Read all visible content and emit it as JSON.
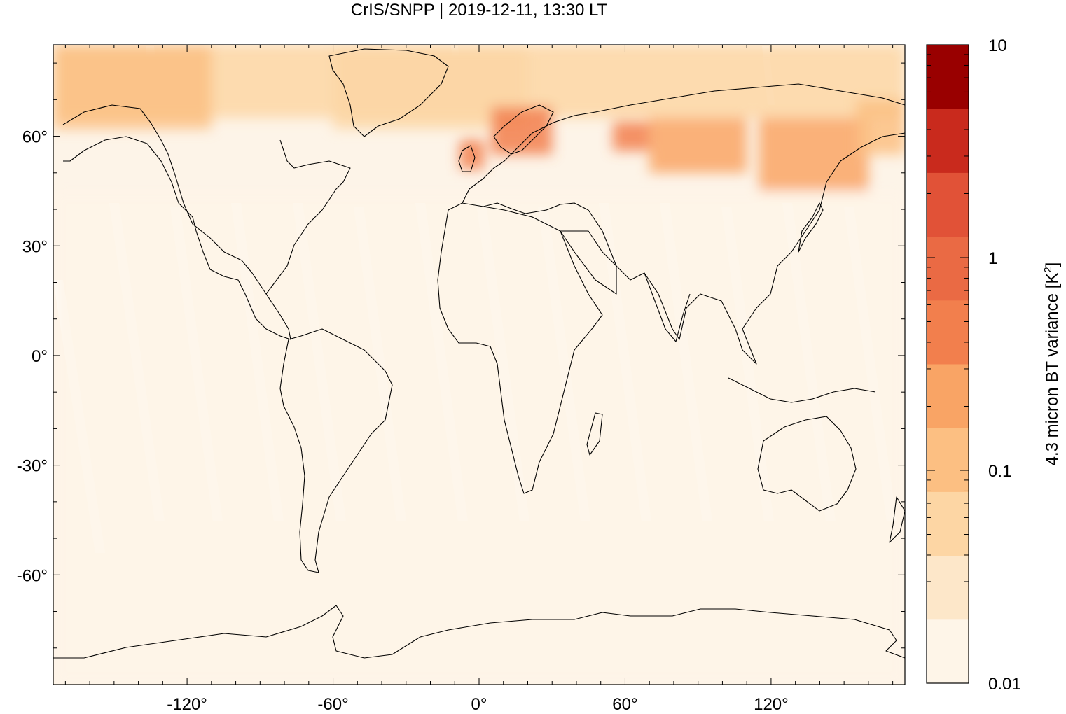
{
  "title": "CrIS/SNPP | 2019-12-11, 13:30 LT",
  "map": {
    "projection": "equirectangular",
    "lon_range": [
      -175,
      175
    ],
    "lat_range": [
      -90,
      85
    ],
    "x_ticks": [
      {
        "value": -120,
        "label": "-120°"
      },
      {
        "value": -60,
        "label": "-60°"
      },
      {
        "value": 0,
        "label": "0°"
      },
      {
        "value": 60,
        "label": "60°"
      },
      {
        "value": 120,
        "label": "120°"
      }
    ],
    "y_ticks": [
      {
        "value": 60,
        "label": "60°"
      },
      {
        "value": 30,
        "label": "30°"
      },
      {
        "value": 0,
        "label": "0°"
      },
      {
        "value": -30,
        "label": "-30°"
      },
      {
        "value": -60,
        "label": "-60°"
      }
    ],
    "background_color": "#fdf4e8",
    "coastline_color": "#000000",
    "swath_gap_color": "#ffffff"
  },
  "colorbar": {
    "label": "4.3 micron BT variance [K",
    "label_superscript": "2",
    "label_close": "]",
    "scale": "log",
    "range": [
      0.01,
      10
    ],
    "tick_labels": [
      {
        "value": 10,
        "label": "10"
      },
      {
        "value": 1,
        "label": "1"
      },
      {
        "value": 0.1,
        "label": "0.1"
      },
      {
        "value": 0.01,
        "label": "0.01"
      }
    ],
    "levels": [
      {
        "from": 0.01,
        "to": 0.02,
        "color": "#fef5e8"
      },
      {
        "from": 0.02,
        "to": 0.04,
        "color": "#fde7c9"
      },
      {
        "from": 0.04,
        "to": 0.08,
        "color": "#fdd6a4"
      },
      {
        "from": 0.08,
        "to": 0.15,
        "color": "#fcbf82"
      },
      {
        "from": 0.15,
        "to": 0.3,
        "color": "#f9a465"
      },
      {
        "from": 0.3,
        "to": 0.6,
        "color": "#f27f4d"
      },
      {
        "from": 0.6,
        "to": 1.2,
        "color": "#ea6a44"
      },
      {
        "from": 1.2,
        "to": 2.5,
        "color": "#e15237"
      },
      {
        "from": 2.5,
        "to": 5,
        "color": "#c92a1d"
      },
      {
        "from": 5,
        "to": 10,
        "color": "#990000"
      }
    ]
  },
  "chart_data": {
    "type": "heatmap",
    "title": "CrIS/SNPP | 2019-12-11, 13:30 LT",
    "xlabel": "",
    "ylabel": "",
    "xlim": [
      -175,
      175
    ],
    "ylim": [
      -90,
      85
    ],
    "color_scale": "log",
    "color_range": [
      0.01,
      10
    ],
    "regions": [
      {
        "name": "tropics_midlatitudes",
        "lon": [
          -175,
          175
        ],
        "lat": [
          -90,
          45
        ],
        "value": 0.015
      },
      {
        "name": "arctic_band",
        "lon": [
          -175,
          175
        ],
        "lat": [
          65,
          85
        ],
        "value": 0.06
      },
      {
        "name": "north_america_high_lat",
        "lon": [
          -175,
          -110
        ],
        "lat": [
          62,
          85
        ],
        "value": 0.1
      },
      {
        "name": "greenland_sea",
        "lon": [
          -60,
          20
        ],
        "lat": [
          62,
          85
        ],
        "value": 0.05
      },
      {
        "name": "british_isles",
        "lon": [
          -8,
          2
        ],
        "lat": [
          51,
          59
        ],
        "value": 0.4
      },
      {
        "name": "scandinavia",
        "lon": [
          5,
          30
        ],
        "lat": [
          55,
          68
        ],
        "value": 0.3
      },
      {
        "name": "west_siberia",
        "lon": [
          55,
          70
        ],
        "lat": [
          56,
          64
        ],
        "value": 0.5
      },
      {
        "name": "central_siberia",
        "lon": [
          70,
          110
        ],
        "lat": [
          50,
          65
        ],
        "value": 0.25
      },
      {
        "name": "east_asia_north",
        "lon": [
          115,
          160
        ],
        "lat": [
          45,
          65
        ],
        "value": 0.15
      },
      {
        "name": "kamchatka",
        "lon": [
          155,
          175
        ],
        "lat": [
          55,
          70
        ],
        "value": 0.12
      }
    ]
  }
}
